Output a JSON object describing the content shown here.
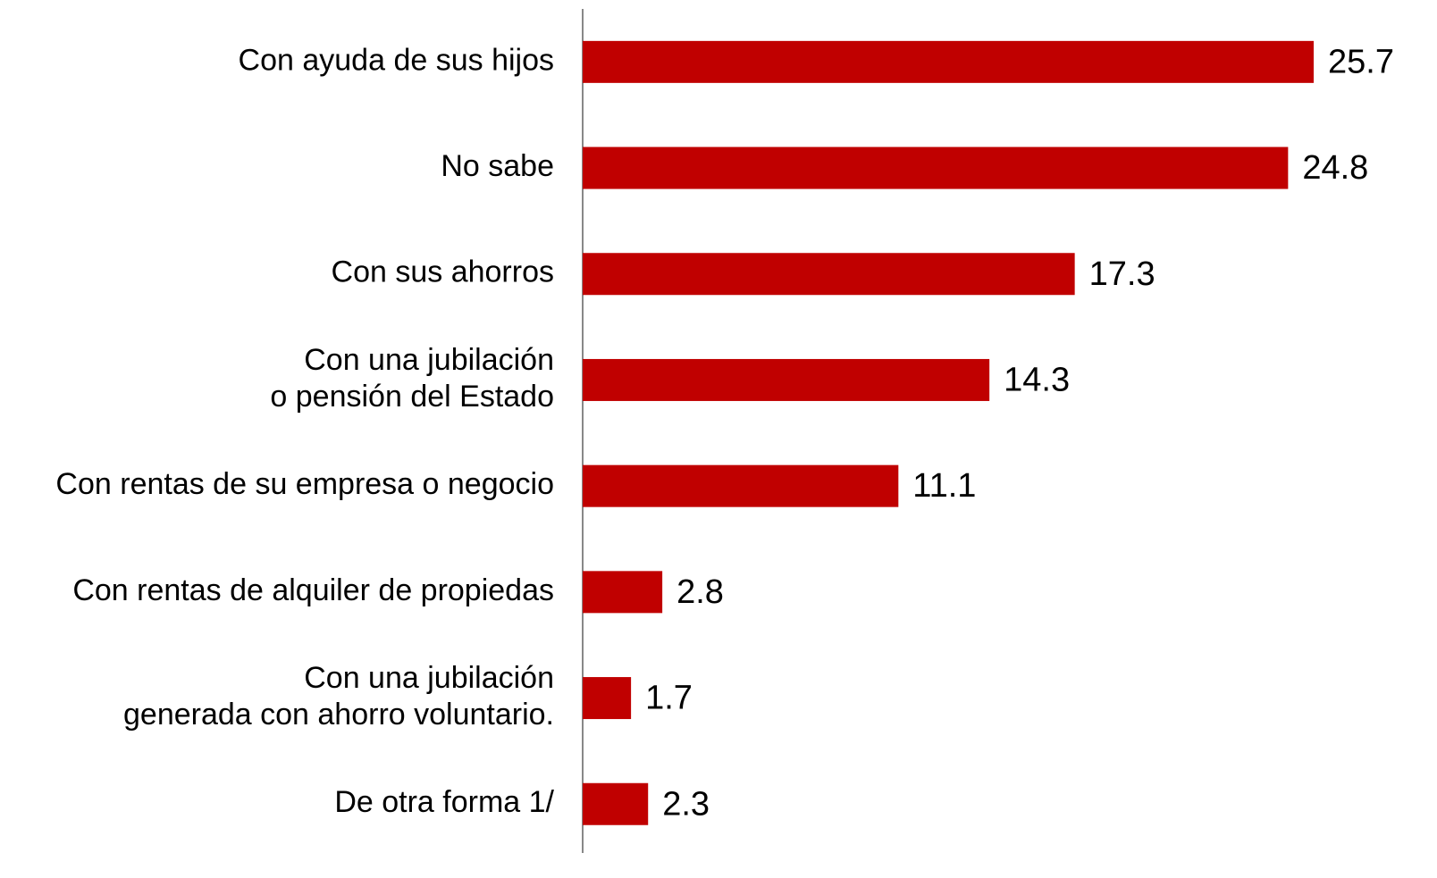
{
  "chart_data": {
    "type": "hbar",
    "categories": [
      "Con ayuda de sus hijos",
      "No sabe",
      "Con sus ahorros",
      "Con una jubilación\no pensión del Estado",
      "Con rentas de su empresa o negocio",
      "Con rentas de alquiler de propiedas",
      "Con una jubilación\ngenerada con ahorro voluntario.",
      "De otra forma 1/"
    ],
    "values": [
      25.7,
      24.8,
      17.3,
      14.3,
      11.1,
      2.8,
      1.7,
      2.3
    ],
    "color": "#c00000"
  }
}
